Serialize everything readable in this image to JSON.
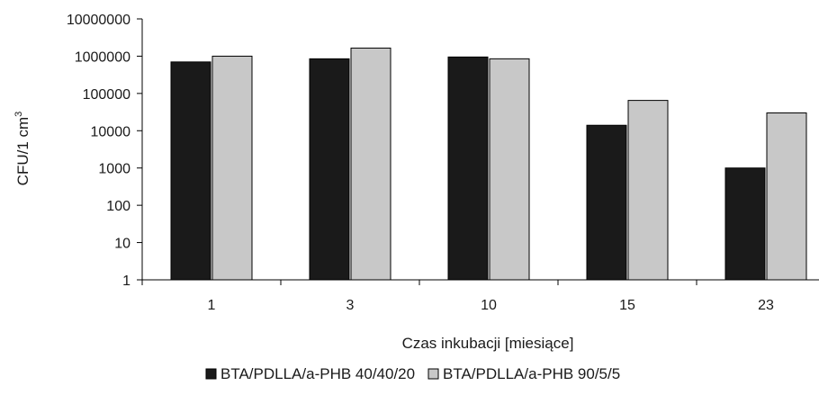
{
  "chart_data": {
    "type": "bar",
    "scale": "log",
    "categories": [
      "1",
      "3",
      "10",
      "15",
      "23"
    ],
    "series": [
      {
        "name": "BTA/PDLLA/a-PHB 40/40/20",
        "color": "#1a1a1a",
        "values": [
          700000,
          850000,
          950000,
          14000,
          1000
        ]
      },
      {
        "name": "BTA/PDLLA/a-PHB 90/5/5",
        "color": "#c8c8c8",
        "values": [
          1000000,
          1650000,
          850000,
          65000,
          30000
        ]
      }
    ],
    "yticks": [
      "1",
      "10",
      "100",
      "1000",
      "10000",
      "100000",
      "1000000",
      "10000000"
    ],
    "ylim": [
      1,
      10000000
    ],
    "xlabel": "Czas inkubacji [miesiące]",
    "ylabel_main": "CFU/1 cm",
    "ylabel_sup": "3",
    "grid": false,
    "legend_position": "bottom"
  }
}
